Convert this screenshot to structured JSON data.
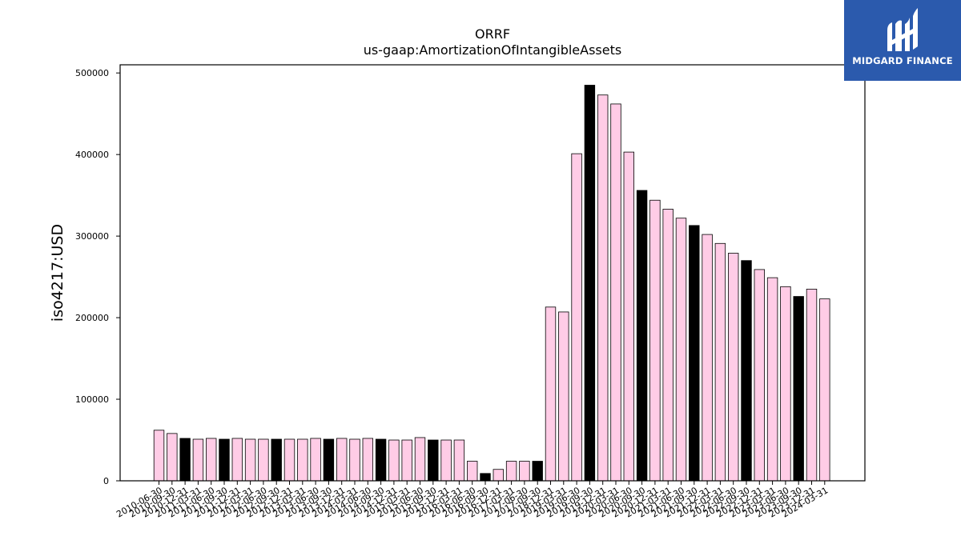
{
  "brand": {
    "name": "MIDGARD FINANCE",
    "bg": "#2b5aad",
    "fg": "#ffffff"
  },
  "chart_data": {
    "type": "bar",
    "title": "ORRF",
    "subtitle": "us-gaap:AmortizationOfIntangibleAssets",
    "xlabel": "",
    "ylabel": "iso4217:USD",
    "ylim": [
      0,
      510000
    ],
    "yticks": [
      0,
      100000,
      200000,
      300000,
      400000,
      500000
    ],
    "grid": false,
    "colors": {
      "default": "#ffcce6",
      "highlight": "#000000",
      "edge": "#000000"
    },
    "categories": [
      "2010-06-30",
      "2010-09-30",
      "2010-12-31",
      "2011-03-31",
      "2011-06-30",
      "2011-09-30",
      "2011-12-31",
      "2012-03-31",
      "2012-06-30",
      "2012-09-30",
      "2012-12-31",
      "2013-03-31",
      "2013-06-30",
      "2013-09-30",
      "2013-12-31",
      "2014-03-31",
      "2014-06-30",
      "2014-09-30",
      "2014-12-31",
      "2015-03-31",
      "2015-06-30",
      "2015-09-30",
      "2015-12-31",
      "2016-03-31",
      "2016-06-30",
      "2016-09-30",
      "2016-12-31",
      "2017-03-31",
      "2017-06-30",
      "2017-09-30",
      "2018-12-31",
      "2019-03-31",
      "2019-06-30",
      "2019-09-30",
      "2019-12-31",
      "2020-03-31",
      "2020-06-30",
      "2020-09-30",
      "2020-12-31",
      "2021-03-31",
      "2021-06-30",
      "2021-09-30",
      "2021-12-31",
      "2022-03-31",
      "2022-06-30",
      "2022-09-30",
      "2022-12-31",
      "2023-03-31",
      "2023-06-30",
      "2023-09-30",
      "2023-12-31",
      "2024-03-31"
    ],
    "values": [
      62000,
      58000,
      52000,
      51000,
      52000,
      51000,
      52000,
      51000,
      51000,
      51000,
      51000,
      51000,
      52000,
      51000,
      52000,
      51000,
      52000,
      51000,
      50000,
      50000,
      53000,
      50000,
      50000,
      50000,
      24000,
      9000,
      14000,
      24000,
      24000,
      24000,
      213000,
      207000,
      401000,
      485000,
      473000,
      462000,
      403000,
      356000,
      344000,
      333000,
      322000,
      313000,
      302000,
      291000,
      279000,
      270000,
      259000,
      249000,
      238000,
      226000,
      235000,
      223000
    ],
    "highlight": [
      false,
      false,
      true,
      false,
      false,
      true,
      false,
      false,
      false,
      true,
      false,
      false,
      false,
      true,
      false,
      false,
      false,
      true,
      false,
      false,
      false,
      true,
      false,
      false,
      false,
      true,
      false,
      false,
      false,
      true,
      false,
      false,
      false,
      true,
      false,
      false,
      false,
      true,
      false,
      false,
      false,
      true,
      false,
      false,
      false,
      true,
      false,
      false,
      false,
      true,
      false,
      false
    ]
  }
}
